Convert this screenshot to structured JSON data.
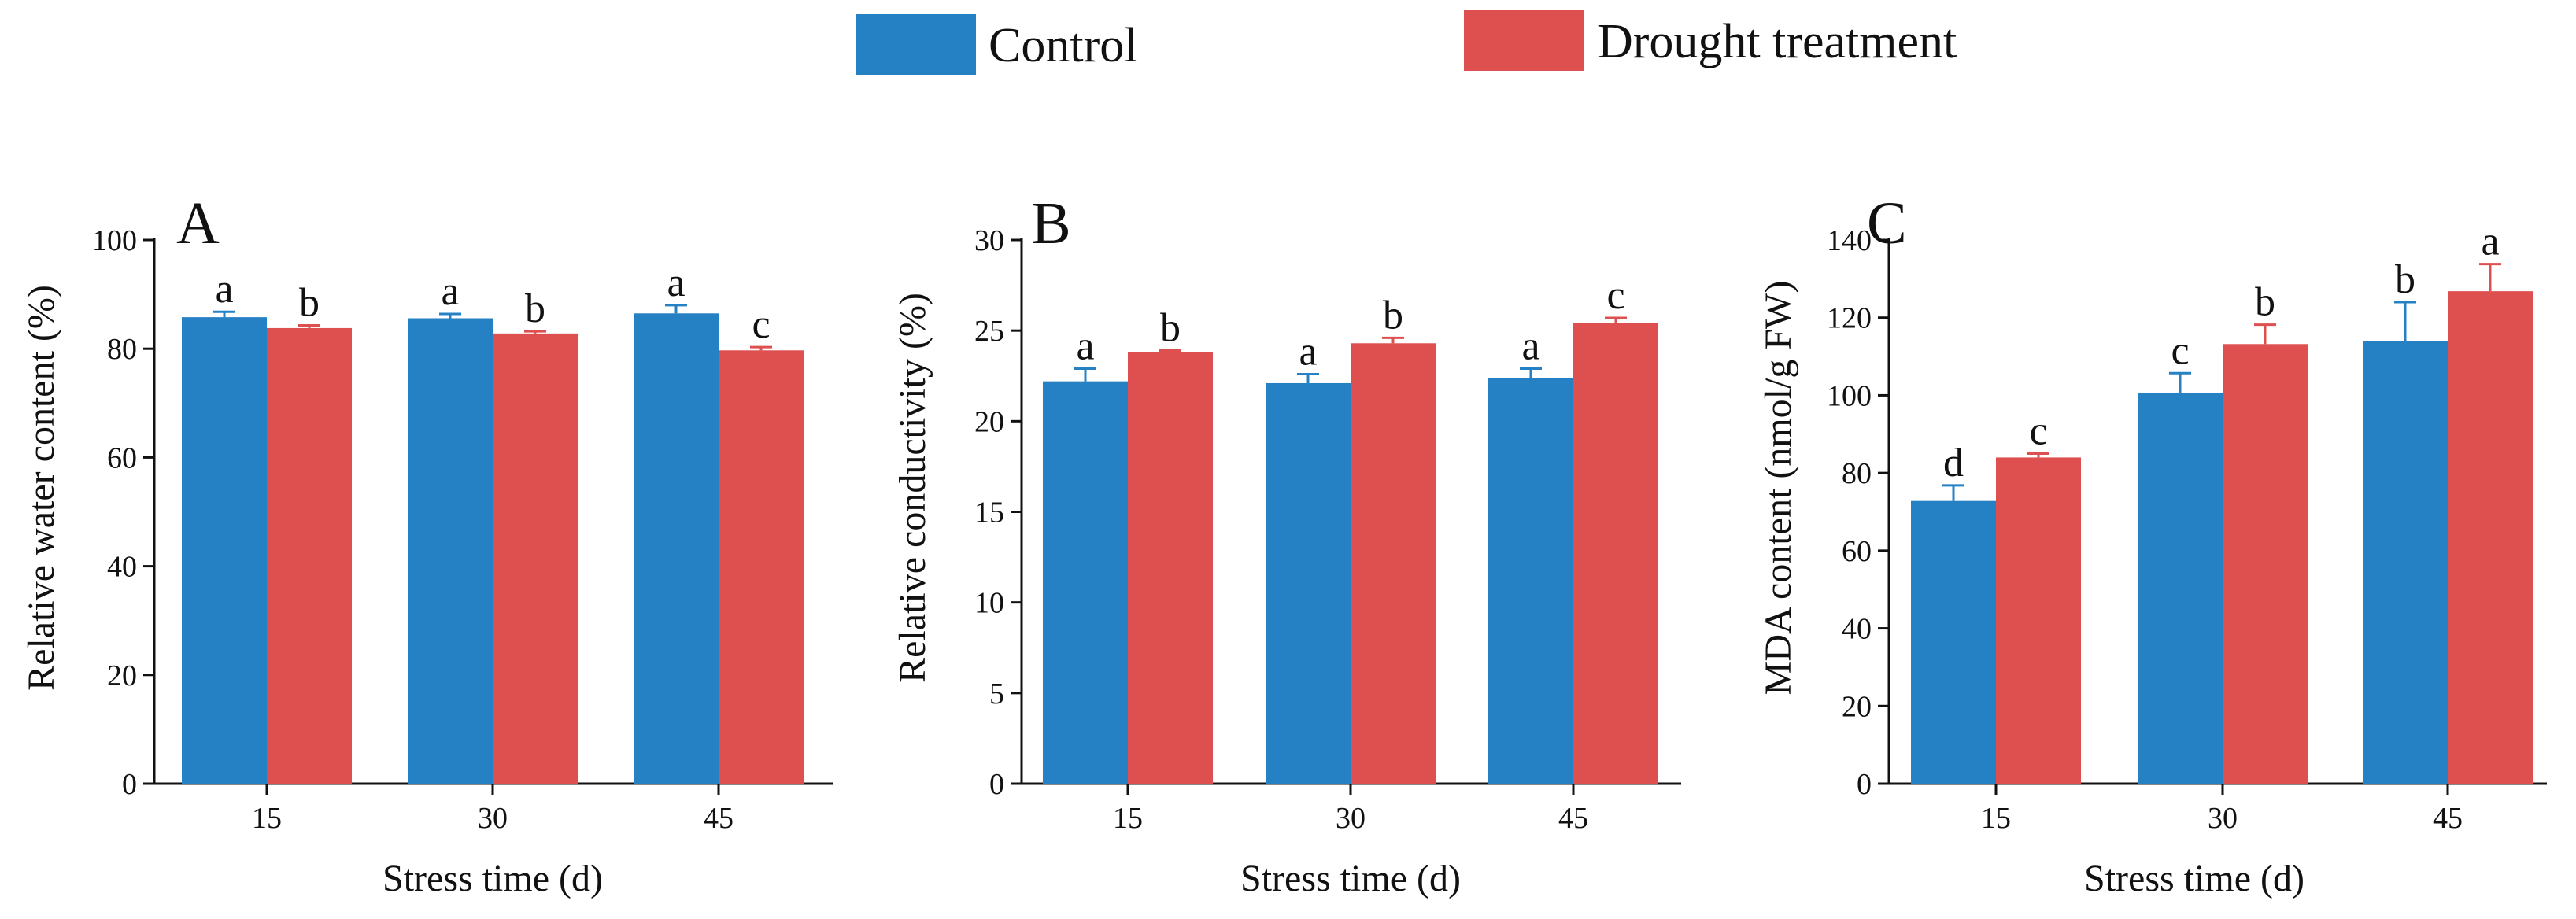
{
  "legend": {
    "control_label": "Control",
    "drought_label": "Drought treatment",
    "control_color": "#2581c4",
    "drought_color": "#de5050"
  },
  "chart_data": [
    {
      "type": "bar",
      "panel": "A",
      "categories": [
        "15",
        "30",
        "45"
      ],
      "series": [
        {
          "name": "Control",
          "values": [
            85.8,
            85.6,
            86.5
          ],
          "errors": [
            1.0,
            0.8,
            1.5
          ],
          "letters": [
            "a",
            "a",
            "a"
          ]
        },
        {
          "name": "Drought treatment",
          "values": [
            83.8,
            82.8,
            79.7
          ],
          "errors": [
            0.5,
            0.4,
            0.6
          ],
          "letters": [
            "b",
            "b",
            "c"
          ]
        }
      ],
      "xlabel": "Stress time (d)",
      "ylabel": "Relative water content (%)",
      "ylim": [
        0,
        100
      ],
      "yticks": [
        0,
        20,
        40,
        60,
        80,
        100
      ]
    },
    {
      "type": "bar",
      "panel": "B",
      "categories": [
        "15",
        "30",
        "45"
      ],
      "series": [
        {
          "name": "Control",
          "values": [
            22.2,
            22.1,
            22.4
          ],
          "errors": [
            0.7,
            0.5,
            0.5
          ],
          "letters": [
            "a",
            "a",
            "a"
          ]
        },
        {
          "name": "Drought treatment",
          "values": [
            23.8,
            24.3,
            25.4
          ],
          "errors": [
            0.1,
            0.3,
            0.3
          ],
          "letters": [
            "b",
            "b",
            "c"
          ]
        }
      ],
      "xlabel": "Stress time (d)",
      "ylabel": "Relative conductivity (%)",
      "ylim": [
        0,
        30
      ],
      "yticks": [
        0,
        5,
        10,
        15,
        20,
        25,
        30
      ]
    },
    {
      "type": "bar",
      "panel": "C",
      "categories": [
        "15",
        "30",
        "45"
      ],
      "series": [
        {
          "name": "Control",
          "values": [
            72.8,
            100.7,
            114.0
          ],
          "errors": [
            4.0,
            5.0,
            10.0
          ],
          "letters": [
            "d",
            "c",
            "b"
          ]
        },
        {
          "name": "Drought treatment",
          "values": [
            84.0,
            113.2,
            126.8
          ],
          "errors": [
            1.0,
            5.0,
            7.0
          ],
          "letters": [
            "c",
            "b",
            "a"
          ]
        }
      ],
      "xlabel": "Stress time (d)",
      "ylabel": "MDA content (nmol/g FW)",
      "ylim": [
        0,
        140
      ],
      "yticks": [
        0,
        20,
        40,
        60,
        80,
        100,
        120,
        140
      ]
    }
  ]
}
